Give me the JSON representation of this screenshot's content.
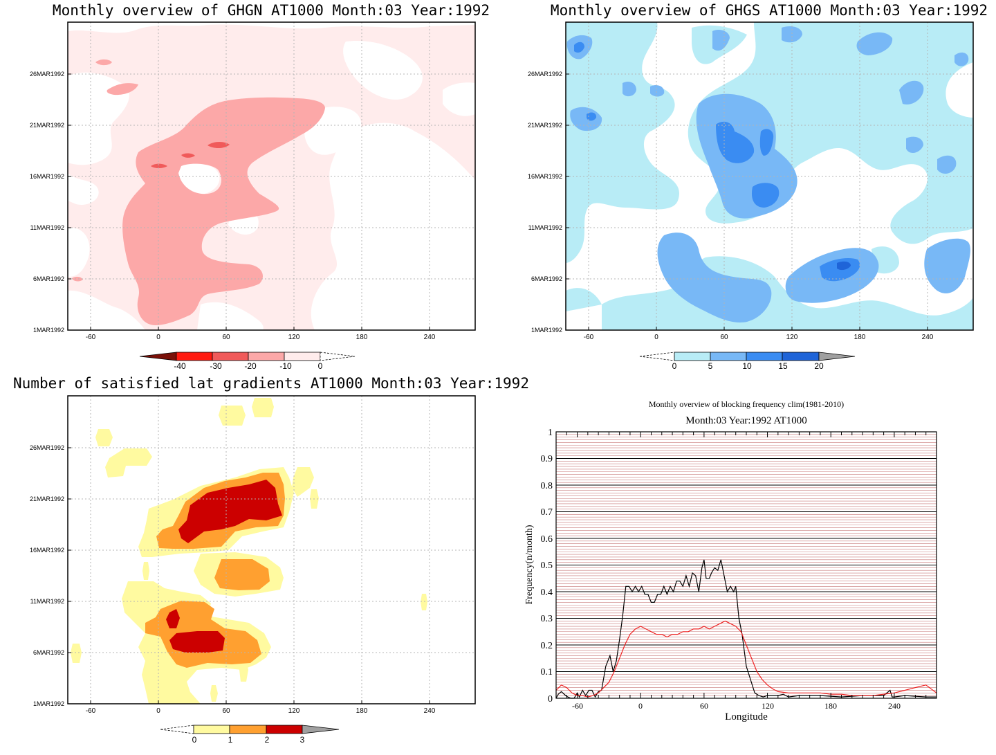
{
  "colors": {
    "ghgn": [
      "#7a1008",
      "#ff1a10",
      "#f05a5a",
      "#fca8a8",
      "#ffecec"
    ],
    "ghgs": [
      "#b8ecf6",
      "#78b8f6",
      "#3a8cf2",
      "#1f64d8",
      "#a0a0a0"
    ],
    "sat": [
      "#fffaa0",
      "#ffa030",
      "#cc0000",
      "#a0a0a0"
    ],
    "blocking_current": "#000000",
    "blocking_clim": "#ee2020",
    "major_grid": "#000000",
    "minor_grid": "#c87878"
  },
  "chart_data": [
    {
      "id": "ghgn",
      "type": "heatmap",
      "title": "Monthly overview of GHGN AT1000 Month:03 Year:1992",
      "x_ticks": [
        "-60",
        "0",
        "60",
        "120",
        "180",
        "240"
      ],
      "y_ticks": [
        "1MAR1992",
        "6MAR1992",
        "11MAR1992",
        "16MAR1992",
        "21MAR1992",
        "26MAR1992"
      ],
      "xlim": [
        -72,
        288
      ],
      "ylim": [
        1,
        31
      ],
      "colorbar_ticks": [
        "-40",
        "-30",
        "-20",
        "-10",
        "0"
      ],
      "colorbar_open_ends": [
        "min",
        "max"
      ]
    },
    {
      "id": "ghgs",
      "type": "heatmap",
      "title": "Monthly overview of GHGS AT1000 Month:03 Year:1992",
      "x_ticks": [
        "-60",
        "0",
        "60",
        "120",
        "180",
        "240"
      ],
      "y_ticks": [
        "1MAR1992",
        "6MAR1992",
        "11MAR1992",
        "16MAR1992",
        "21MAR1992",
        "26MAR1992"
      ],
      "xlim": [
        -72,
        288
      ],
      "ylim": [
        1,
        31
      ],
      "colorbar_ticks": [
        "0",
        "5",
        "10",
        "15",
        "20"
      ],
      "colorbar_open_ends": [
        "min",
        "max"
      ]
    },
    {
      "id": "sat",
      "type": "heatmap",
      "title": "Number of satisfied lat gradients AT1000 Month:03 Year:1992",
      "x_ticks": [
        "-60",
        "0",
        "60",
        "120",
        "180",
        "240"
      ],
      "y_ticks": [
        "1MAR1992",
        "6MAR1992",
        "11MAR1992",
        "16MAR1992",
        "21MAR1992",
        "26MAR1992"
      ],
      "xlim": [
        -72,
        288
      ],
      "ylim": [
        1,
        31
      ],
      "colorbar_ticks": [
        "0",
        "1",
        "2",
        "3"
      ],
      "colorbar_open_ends": [
        "min",
        "max"
      ]
    },
    {
      "id": "blocking",
      "type": "line",
      "title": "Monthly overview of blocking frequency clim(1981-2010)",
      "subtitle": "Month:03 Year:1992  AT1000",
      "xlabel": "Longitude",
      "ylabel": "Frequency(n/month)",
      "xlim": [
        -80,
        280
      ],
      "ylim": [
        0,
        1
      ],
      "x_ticks": [
        "-60",
        "0",
        "60",
        "120",
        "180",
        "240"
      ],
      "y_ticks": [
        "0",
        "0.1",
        "0.2",
        "0.3",
        "0.4",
        "0.5",
        "0.6",
        "0.7",
        "0.8",
        "0.9",
        "1"
      ],
      "grid": true,
      "series": [
        {
          "color": "#000000",
          "x": [
            -80,
            -78,
            -75,
            -71,
            -69,
            -66,
            -63,
            -60,
            -58,
            -55,
            -52,
            -49,
            -46,
            -43,
            -40,
            -37,
            -33,
            -29,
            -26,
            -23,
            -20,
            -17,
            -14,
            -11,
            -8,
            -5,
            -2,
            1,
            4,
            7,
            10,
            13,
            16,
            19,
            22,
            25,
            28,
            31,
            34,
            37,
            40,
            43,
            46,
            49,
            52,
            55,
            58,
            60,
            62,
            65,
            67,
            70,
            73,
            76,
            79,
            82,
            85,
            88,
            90,
            93,
            96,
            100,
            104,
            108,
            112,
            116,
            120,
            125,
            130,
            135,
            140,
            150,
            170,
            190,
            210,
            230,
            236,
            238,
            240,
            250,
            270,
            280
          ],
          "y": [
            0,
            0.015,
            0.025,
            0.01,
            0.005,
            0,
            0,
            0.02,
            0.005,
            0.03,
            0.01,
            0.03,
            0.03,
            0.005,
            0.025,
            0.03,
            0.12,
            0.16,
            0.1,
            0.14,
            0.22,
            0.31,
            0.42,
            0.42,
            0.4,
            0.42,
            0.4,
            0.42,
            0.39,
            0.39,
            0.36,
            0.36,
            0.39,
            0.39,
            0.42,
            0.39,
            0.42,
            0.4,
            0.44,
            0.44,
            0.42,
            0.46,
            0.42,
            0.47,
            0.46,
            0.4,
            0.49,
            0.52,
            0.45,
            0.45,
            0.47,
            0.49,
            0.48,
            0.52,
            0.46,
            0.4,
            0.42,
            0.4,
            0.42,
            0.3,
            0.24,
            0.12,
            0.07,
            0.02,
            0.01,
            0.005,
            0.01,
            0.01,
            0.01,
            0.015,
            0.005,
            0.01,
            0.01,
            0.005,
            0.01,
            0.01,
            0.03,
            0.005,
            0.005,
            0.01,
            0.005,
            0.005
          ]
        },
        {
          "color": "#ee2020",
          "x": [
            -80,
            -75,
            -70,
            -65,
            -60,
            -55,
            -50,
            -45,
            -40,
            -35,
            -30,
            -25,
            -20,
            -15,
            -10,
            -5,
            0,
            5,
            10,
            15,
            20,
            25,
            30,
            35,
            40,
            45,
            50,
            55,
            60,
            65,
            70,
            75,
            80,
            85,
            90,
            95,
            100,
            105,
            110,
            115,
            120,
            125,
            130,
            140,
            150,
            160,
            170,
            180,
            190,
            200,
            210,
            220,
            230,
            240,
            250,
            260,
            270,
            280
          ],
          "y": [
            0.03,
            0.05,
            0.04,
            0.02,
            0.01,
            0.01,
            0.005,
            0.01,
            0.02,
            0.04,
            0.06,
            0.1,
            0.15,
            0.2,
            0.24,
            0.26,
            0.27,
            0.26,
            0.25,
            0.24,
            0.24,
            0.23,
            0.24,
            0.24,
            0.25,
            0.25,
            0.26,
            0.26,
            0.27,
            0.26,
            0.27,
            0.28,
            0.29,
            0.28,
            0.27,
            0.25,
            0.2,
            0.15,
            0.1,
            0.07,
            0.05,
            0.035,
            0.025,
            0.02,
            0.02,
            0.02,
            0.02,
            0.015,
            0.015,
            0.01,
            0.01,
            0.01,
            0.015,
            0.02,
            0.03,
            0.04,
            0.05,
            0.02
          ]
        }
      ]
    }
  ]
}
